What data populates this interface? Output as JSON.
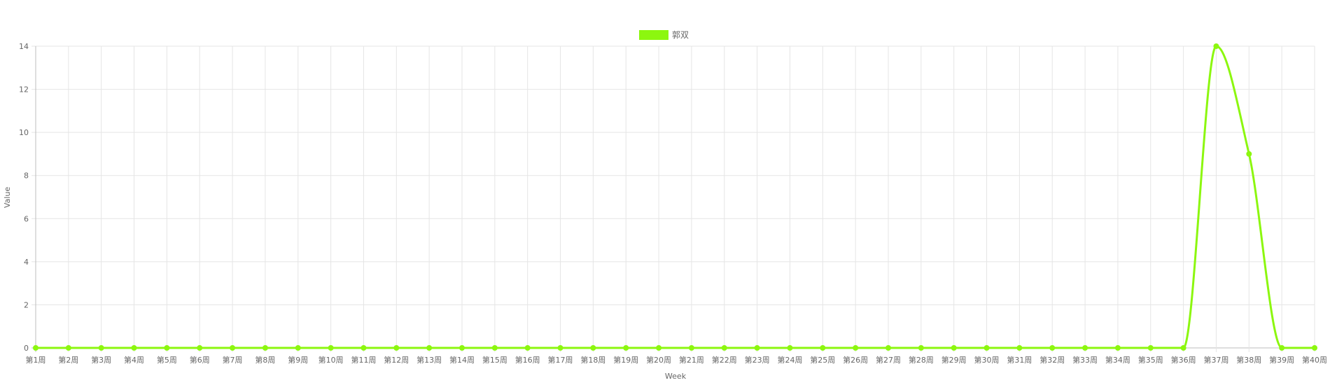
{
  "chart_data": {
    "type": "line",
    "title": "",
    "xlabel": "Week",
    "ylabel": "Value",
    "ylim": [
      0,
      14
    ],
    "yticks": [
      0,
      2,
      4,
      6,
      8,
      10,
      12,
      14
    ],
    "grid": true,
    "legend_position": "top",
    "categories": [
      "第1周",
      "第2周",
      "第3周",
      "第4周",
      "第5周",
      "第6周",
      "第7周",
      "第8周",
      "第9周",
      "第10周",
      "第11周",
      "第12周",
      "第13周",
      "第14周",
      "第15周",
      "第16周",
      "第17周",
      "第18周",
      "第19周",
      "第20周",
      "第21周",
      "第22周",
      "第23周",
      "第24周",
      "第25周",
      "第26周",
      "第27周",
      "第28周",
      "第29周",
      "第30周",
      "第31周",
      "第32周",
      "第33周",
      "第34周",
      "第35周",
      "第36周",
      "第37周",
      "第38周",
      "第39周",
      "第40周"
    ],
    "series": [
      {
        "name": "郭双",
        "color": "#8cf70f",
        "values": [
          0,
          0,
          0,
          0,
          0,
          0,
          0,
          0,
          0,
          0,
          0,
          0,
          0,
          0,
          0,
          0,
          0,
          0,
          0,
          0,
          0,
          0,
          0,
          0,
          0,
          0,
          0,
          0,
          0,
          0,
          0,
          0,
          0,
          0,
          0,
          0,
          14,
          9,
          0,
          0
        ]
      }
    ]
  }
}
